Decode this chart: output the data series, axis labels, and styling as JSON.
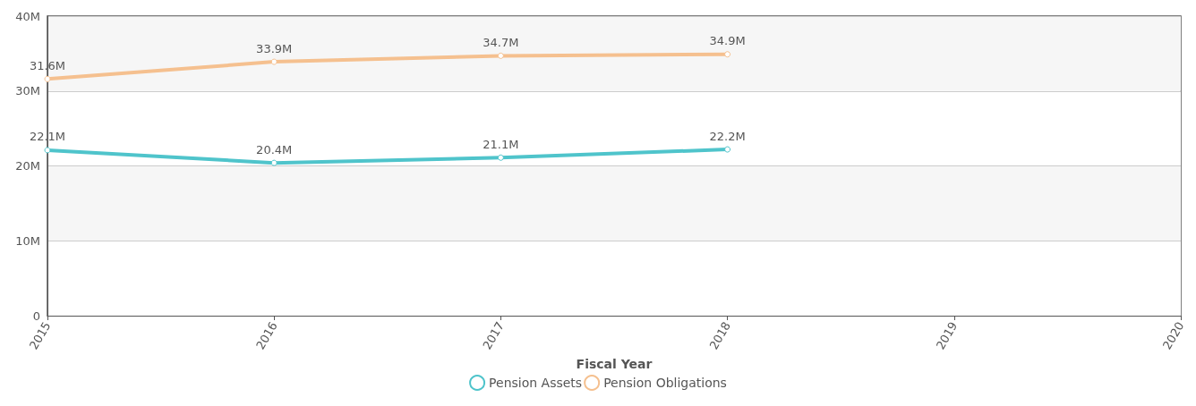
{
  "chart_data": {
    "type": "line",
    "xlabel": "Fiscal Year",
    "x": [
      2015,
      2016,
      2017,
      2018
    ],
    "series": [
      {
        "name": "Pension Assets",
        "color": "#4fc4cb",
        "values": [
          22.1,
          20.4,
          21.1,
          22.2
        ],
        "value_labels": [
          "22.1M",
          "20.4M",
          "21.1M",
          "22.2M"
        ]
      },
      {
        "name": "Pension Obligations",
        "color": "#f5c08f",
        "values": [
          31.6,
          33.9,
          34.7,
          34.9
        ],
        "value_labels": [
          "31.6M",
          "33.9M",
          "34.7M",
          "34.9M"
        ]
      }
    ],
    "xlim": [
      2015,
      2020
    ],
    "xticks": [
      2015,
      2016,
      2017,
      2018,
      2019,
      2020
    ],
    "ylim": [
      0,
      40
    ],
    "yticks": [
      0,
      {
        "value": 10,
        "label": "10M"
      },
      {
        "value": 20,
        "label": "20M"
      },
      {
        "value": 30,
        "label": "30M"
      },
      {
        "value": 40,
        "label": "40M"
      }
    ],
    "grid": "y",
    "legend": "bottom",
    "marker": "circle"
  }
}
